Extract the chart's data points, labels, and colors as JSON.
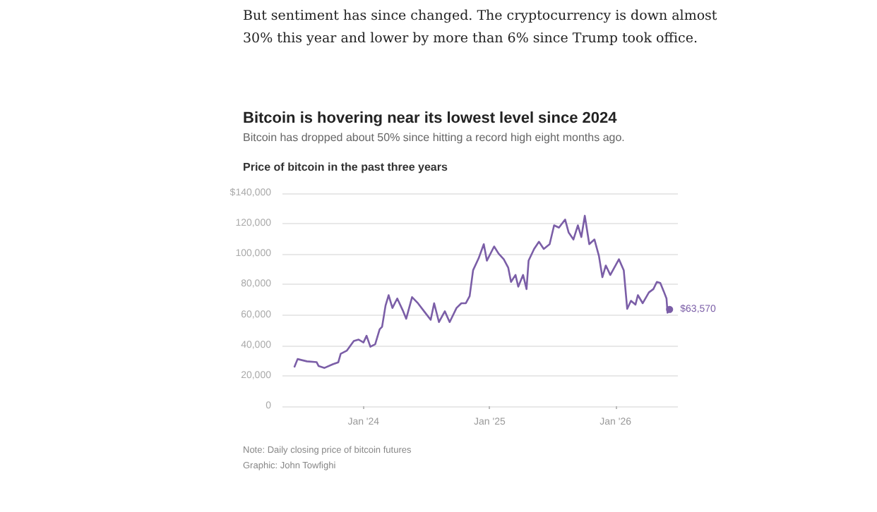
{
  "chart_data": {
    "type": "line",
    "title": "Bitcoin is hovering near its lowest level since 2024",
    "subtitle": "Bitcoin has dropped about 50% since hitting a record high eight months ago.",
    "ylabel": "Price of bitcoin in the past three years",
    "annotations": [
      "But sentiment has since changed. The cryptocurrency is down almost 30% this year and lower by more than 6% since Trump took office.",
      "Note: Daily closing price of bitcoin futures",
      "Graphic: John Towfighi"
    ],
    "x": [
      "2023-06-15",
      "2023-06-24",
      "2023-07-21",
      "2023-08-18",
      "2023-08-24",
      "2023-09-10",
      "2023-10-04",
      "2023-10-20",
      "2023-10-27",
      "2023-11-14",
      "2023-12-04",
      "2023-12-18",
      "2024-01-01",
      "2024-01-10",
      "2024-01-21",
      "2024-02-04",
      "2024-02-17",
      "2024-02-24",
      "2024-03-05",
      "2024-03-14",
      "2024-03-25",
      "2024-04-08",
      "2024-04-24",
      "2024-05-04",
      "2024-05-21",
      "2024-06-07",
      "2024-06-28",
      "2024-07-14",
      "2024-07-24",
      "2024-08-07",
      "2024-08-24",
      "2024-09-07",
      "2024-09-27",
      "2024-10-11",
      "2024-10-24",
      "2024-11-04",
      "2024-11-14",
      "2024-11-30",
      "2024-12-15",
      "2024-12-24",
      "2025-01-14",
      "2025-01-27",
      "2025-02-11",
      "2025-02-24",
      "2025-03-04",
      "2025-03-17",
      "2025-03-25",
      "2025-04-08",
      "2025-04-18",
      "2025-04-24",
      "2025-05-10",
      "2025-05-24",
      "2025-06-07",
      "2025-06-24",
      "2025-07-07",
      "2025-07-21",
      "2025-08-08",
      "2025-08-18",
      "2025-09-01",
      "2025-09-14",
      "2025-09-24",
      "2025-10-04",
      "2025-10-17",
      "2025-11-01",
      "2025-11-14",
      "2025-11-24",
      "2025-12-04",
      "2025-12-17",
      "2026-01-11",
      "2026-01-25",
      "2026-02-04",
      "2026-02-15",
      "2026-02-28",
      "2026-03-07",
      "2026-03-21",
      "2026-04-08",
      "2026-04-21",
      "2026-05-01",
      "2026-05-11",
      "2026-05-21",
      "2026-05-29",
      "2026-06-01",
      "2026-06-07"
    ],
    "series": [
      {
        "color": "#7b5ea7",
        "values": [
          26000,
          31000,
          29500,
          29000,
          26400,
          25200,
          27600,
          28900,
          34500,
          36600,
          42900,
          43800,
          41900,
          46300,
          39100,
          40700,
          50600,
          52200,
          66100,
          73000,
          64600,
          70800,
          63000,
          57500,
          71700,
          67700,
          61500,
          56800,
          67700,
          55300,
          62400,
          55300,
          64600,
          67700,
          67700,
          72400,
          89400,
          97200,
          106500,
          95700,
          105000,
          100300,
          96600,
          91000,
          81700,
          86300,
          78600,
          86300,
          77000,
          95700,
          103400,
          108100,
          103400,
          106500,
          118900,
          117400,
          122700,
          114300,
          109600,
          118900,
          111200,
          125200,
          106500,
          109600,
          98800,
          84800,
          92500,
          86300,
          96600,
          89400,
          64000,
          69300,
          66800,
          73000,
          67700,
          74800,
          77000,
          81700,
          81000,
          75500,
          70800,
          61500,
          63570
        ],
        "value_labels": [
          null,
          null,
          null,
          null,
          null,
          null,
          null,
          null,
          null,
          null,
          null,
          null,
          null,
          null,
          null,
          null,
          null,
          null,
          null,
          null,
          null,
          null,
          null,
          null,
          null,
          null,
          null,
          null,
          null,
          null,
          null,
          null,
          null,
          null,
          null,
          null,
          null,
          null,
          null,
          null,
          null,
          null,
          null,
          null,
          null,
          null,
          null,
          null,
          null,
          null,
          null,
          null,
          null,
          null,
          null,
          null,
          null,
          null,
          null,
          null,
          null,
          null,
          null,
          null,
          null,
          null,
          null,
          null,
          null,
          null,
          null,
          null,
          null,
          null,
          null,
          null,
          null,
          null,
          null,
          null,
          null,
          null,
          "$63,570"
        ]
      }
    ],
    "xlim": [
      "2023-05-11",
      "2026-07-01"
    ],
    "xticks": [
      {
        "value": "2024-01-01",
        "label": "Jan '24"
      },
      {
        "value": "2025-01-01",
        "label": "Jan '25"
      },
      {
        "value": "2026-01-01",
        "label": "Jan '26"
      }
    ],
    "ylim": [
      0,
      140000
    ],
    "yticks": [
      {
        "value": 0,
        "label": "0"
      },
      {
        "value": 20000,
        "label": "20,000"
      },
      {
        "value": 40000,
        "label": "40,000"
      },
      {
        "value": 60000,
        "label": "60,000"
      },
      {
        "value": 80000,
        "label": "80,000"
      },
      {
        "value": 100000,
        "label": "100,000"
      },
      {
        "value": 120000,
        "label": "120,000"
      },
      {
        "value": 140000,
        "label": "$140,000"
      }
    ],
    "grid": "y",
    "marker": "none",
    "line_style": "solid"
  }
}
